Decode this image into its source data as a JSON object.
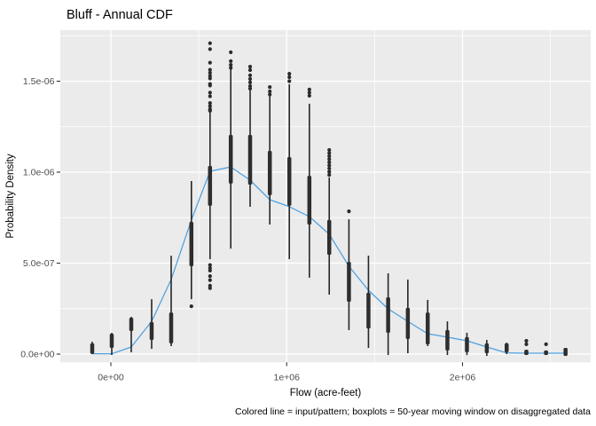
{
  "title": "Bluff - Annual CDF",
  "caption": "Colored line = input/pattern; boxplots = 50-year moving window on disaggregated data",
  "axes": {
    "x": {
      "label": "Flow (acre-feet)",
      "ticks": [
        {
          "label": "0e+00",
          "value": 0
        },
        {
          "label": "1e+06",
          "value": 1000000
        },
        {
          "label": "2e+06",
          "value": 2000000
        }
      ],
      "minor_values": [
        500000,
        1500000,
        2500000
      ]
    },
    "y": {
      "label": "Probability Density",
      "unit_scale": "1e-06",
      "ticks": [
        {
          "label": "0.0e+00",
          "value": 0
        },
        {
          "label": "5.0e-07",
          "value": 0.5
        },
        {
          "label": "1.0e-06",
          "value": 1.0
        },
        {
          "label": "1.5e-06",
          "value": 1.5
        }
      ],
      "minor_values": [
        0.25,
        0.75,
        1.25,
        1.75
      ]
    }
  },
  "colors": {
    "panel": "#EBEBEB",
    "grid": "#FFFFFF",
    "line": "#4DA0E0",
    "box_fill": "#2E2E2E",
    "whisker": "#262626",
    "outlier": "#2B2B2B",
    "tick_mark": "#333333",
    "tick_text": "#4D4D4D",
    "text": "#000000"
  },
  "chart_data": {
    "type": "boxplot+line",
    "title": "Bluff - Annual CDF",
    "xlabel": "Flow (acre-feet)",
    "ylabel": "Probability Density",
    "xlim": [
      -290000,
      2730000
    ],
    "ylim_e6": [
      -0.045,
      1.78
    ],
    "grid": "white major and minor gridlines on grey panel",
    "legend": "none",
    "density_unit_note": "density values given in units of 1e-06",
    "line_series": {
      "name": "input/pattern",
      "points": [
        [
          -106000,
          0.002
        ],
        [
          5000,
          0.002
        ],
        [
          116000,
          0.039
        ],
        [
          232000,
          0.18
        ],
        [
          343000,
          0.41
        ],
        [
          458000,
          0.737
        ],
        [
          564000,
          1.005
        ],
        [
          682000,
          1.029
        ],
        [
          792000,
          0.956
        ],
        [
          904000,
          0.849
        ],
        [
          1015000,
          0.81
        ],
        [
          1129000,
          0.756
        ],
        [
          1242000,
          0.659
        ],
        [
          1354000,
          0.483
        ],
        [
          1465000,
          0.351
        ],
        [
          1577000,
          0.249
        ],
        [
          1689000,
          0.18
        ],
        [
          1802000,
          0.112
        ],
        [
          1914000,
          0.093
        ],
        [
          2025000,
          0.073
        ],
        [
          2138000,
          0.039
        ],
        [
          2251000,
          0.007
        ],
        [
          2363000,
          0.005
        ],
        [
          2475000,
          0.005
        ],
        [
          2586000,
          0.005
        ]
      ]
    },
    "boxplots": {
      "name": "50-year moving window on disaggregated data",
      "items": [
        {
          "flow": -106000,
          "whisker": [
            0.0,
            0.068
          ],
          "box": [
            0.002,
            0.059
          ],
          "outliers": []
        },
        {
          "flow": 5000,
          "whisker": [
            -0.005,
            0.117
          ],
          "box": [
            0.034,
            0.112
          ],
          "outliers": []
        },
        {
          "flow": 116000,
          "whisker": [
            0.01,
            0.205
          ],
          "box": [
            0.127,
            0.2
          ],
          "outliers": []
        },
        {
          "flow": 232000,
          "whisker": [
            0.029,
            0.302
          ],
          "box": [
            0.078,
            0.176
          ],
          "outliers": []
        },
        {
          "flow": 343000,
          "whisker": [
            0.044,
            0.541
          ],
          "box": [
            0.059,
            0.229
          ],
          "outliers": []
        },
        {
          "flow": 458000,
          "whisker": [
            0.302,
            0.951
          ],
          "box": [
            0.483,
            0.727
          ],
          "outliers": [
            0.263
          ]
        },
        {
          "flow": 564000,
          "whisker": [
            0.522,
            1.327
          ],
          "box": [
            0.815,
            1.034
          ],
          "outliers": [
            1.709,
            1.676,
            1.602,
            1.563,
            1.546,
            1.529,
            1.515,
            1.485,
            1.476,
            1.437,
            1.417,
            1.38,
            1.363,
            1.346,
            1.337,
            0.49,
            0.473,
            0.459,
            0.429,
            0.407,
            0.376,
            0.363
          ]
        },
        {
          "flow": 682000,
          "whisker": [
            0.58,
            1.566
          ],
          "box": [
            0.937,
            1.205
          ],
          "outliers": [
            1.659,
            1.61,
            1.59,
            1.573
          ]
        },
        {
          "flow": 792000,
          "whisker": [
            0.81,
            1.449
          ],
          "box": [
            0.932,
            1.205
          ],
          "outliers": [
            1.58,
            1.561,
            1.532,
            1.512,
            1.493,
            1.473,
            1.459
          ]
        },
        {
          "flow": 904000,
          "whisker": [
            0.712,
            1.42
          ],
          "box": [
            0.873,
            1.117
          ],
          "outliers": [
            1.468,
            1.444,
            1.427
          ]
        },
        {
          "flow": 1015000,
          "whisker": [
            0.522,
            1.483
          ],
          "box": [
            0.815,
            1.083
          ],
          "outliers": [
            1.541,
            1.522,
            1.5
          ]
        },
        {
          "flow": 1129000,
          "whisker": [
            0.42,
            1.376
          ],
          "box": [
            0.712,
            0.98
          ],
          "outliers": [
            1.454,
            1.437,
            1.42
          ]
        },
        {
          "flow": 1242000,
          "whisker": [
            0.327,
            0.971
          ],
          "box": [
            0.546,
            0.737
          ],
          "outliers": [
            1.122,
            1.105,
            1.088,
            1.071,
            1.054,
            1.037,
            1.02,
            1.002,
            0.985
          ]
        },
        {
          "flow": 1354000,
          "whisker": [
            0.132,
            0.741
          ],
          "box": [
            0.288,
            0.507
          ],
          "outliers": [
            0.785
          ]
        },
        {
          "flow": 1465000,
          "whisker": [
            0.034,
            0.541
          ],
          "box": [
            0.141,
            0.337
          ],
          "outliers": []
        },
        {
          "flow": 1577000,
          "whisker": [
            -0.005,
            0.444
          ],
          "box": [
            0.117,
            0.312
          ],
          "outliers": []
        },
        {
          "flow": 1689000,
          "whisker": [
            0.005,
            0.41
          ],
          "box": [
            0.083,
            0.254
          ],
          "outliers": []
        },
        {
          "flow": 1802000,
          "whisker": [
            0.044,
            0.298
          ],
          "box": [
            0.054,
            0.229
          ],
          "outliers": []
        },
        {
          "flow": 1914000,
          "whisker": [
            -0.005,
            0.18
          ],
          "box": [
            0.02,
            0.132
          ],
          "outliers": []
        },
        {
          "flow": 2025000,
          "whisker": [
            -0.005,
            0.117
          ],
          "box": [
            0.01,
            0.093
          ],
          "outliers": []
        },
        {
          "flow": 2138000,
          "whisker": [
            -0.01,
            0.078
          ],
          "box": [
            0.005,
            0.059
          ],
          "outliers": []
        },
        {
          "flow": 2251000,
          "whisker": [
            0.0,
            0.063
          ],
          "box": [
            0.01,
            0.059
          ],
          "outliers": []
        },
        {
          "flow": 2363000,
          "whisker": [
            -0.005,
            0.024
          ],
          "box": [
            -0.005,
            0.024
          ],
          "outliers": [
            0.073,
            0.054
          ]
        },
        {
          "flow": 2475000,
          "whisker": [
            -0.005,
            0.02
          ],
          "box": [
            -0.005,
            0.02
          ],
          "outliers": [
            0.054
          ]
        },
        {
          "flow": 2586000,
          "whisker": [
            -0.01,
            0.034
          ],
          "box": [
            -0.01,
            0.034
          ],
          "outliers": []
        }
      ]
    }
  }
}
